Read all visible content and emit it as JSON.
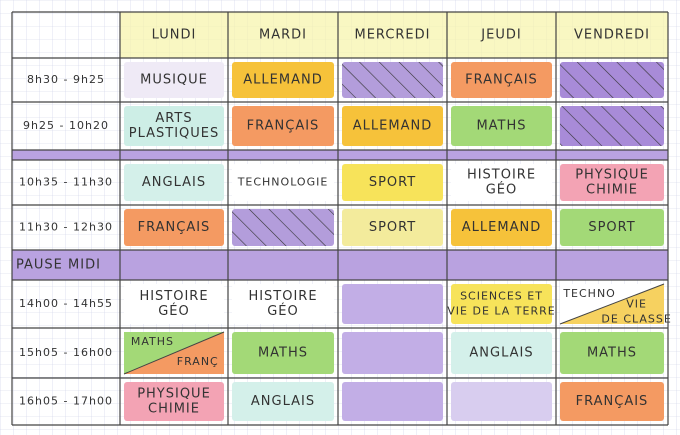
{
  "header": {
    "days": [
      "LUNDI",
      "MARDI",
      "MERCREDI",
      "JEUDI",
      "VENDREDI"
    ]
  },
  "pause": "PAUSE MIDI",
  "rows": [
    {
      "time": "8h30 - 9h25",
      "cells": [
        {
          "lines": [
            "MUSIQUE"
          ],
          "color": "#efeaf6"
        },
        {
          "lines": [
            "ALLEMAND"
          ],
          "color": "#f6c23a"
        },
        {
          "hatched": true,
          "color": "#b39ddb"
        },
        {
          "lines": [
            "FRANÇAIS"
          ],
          "color": "#f49a62"
        },
        {
          "hatched": true,
          "color": "#a88bd8"
        }
      ]
    },
    {
      "time": "9h25 - 10h20",
      "cells": [
        {
          "lines": [
            "ARTS",
            "PLASTIQUES"
          ],
          "color": "#cdeee6"
        },
        {
          "lines": [
            "FRANÇAIS"
          ],
          "color": "#f49a62"
        },
        {
          "lines": [
            "ALLEMAND"
          ],
          "color": "#f6c23a"
        },
        {
          "lines": [
            "MATHS"
          ],
          "color": "#a3d977"
        },
        {
          "hatched": true,
          "color": "#a88bd8"
        }
      ]
    },
    {
      "time": "10h35 - 11h30",
      "cells": [
        {
          "lines": [
            "ANGLAIS"
          ],
          "color": "#d4f0ea"
        },
        {
          "lines": [
            "TECHNOLOGIE"
          ],
          "color": "#ffffff"
        },
        {
          "lines": [
            "SPORT"
          ],
          "color": "#f7e35a"
        },
        {
          "lines": [
            "HISTOIRE",
            "GÉO"
          ],
          "color": "#ffffff"
        },
        {
          "lines": [
            "PHYSIQUE",
            "CHIMIE"
          ],
          "color": "#f3a3b4"
        }
      ]
    },
    {
      "time": "11h30 - 12h30",
      "cells": [
        {
          "lines": [
            "FRANÇAIS"
          ],
          "color": "#f49a62"
        },
        {
          "hatched": true,
          "color": "#b39ddb"
        },
        {
          "lines": [
            "SPORT"
          ],
          "color": "#f3eb9c"
        },
        {
          "lines": [
            "ALLEMAND"
          ],
          "color": "#f6c23a"
        },
        {
          "lines": [
            "SPORT"
          ],
          "color": "#a3d977"
        }
      ]
    },
    {
      "time": "14h00 - 14h55",
      "cells": [
        {
          "lines": [
            "HISTOIRE",
            "GÉO"
          ],
          "color": "#ffffff"
        },
        {
          "lines": [
            "HISTOIRE",
            "GÉO"
          ],
          "color": "#ffffff"
        },
        {
          "color": "#c2aee6"
        },
        {
          "lines": [
            "SCIENCES ET",
            "VIE DE LA TERRE"
          ],
          "color": "#f7e35a"
        },
        {
          "split": [
            {
              "lines": [
                "TECHNO"
              ],
              "color": "#ffffff"
            },
            {
              "lines": [
                "VIE",
                "DE CLASSE"
              ],
              "color": "#f6d160"
            }
          ]
        }
      ]
    },
    {
      "time": "15h05 - 16h00",
      "cells": [
        {
          "split": [
            {
              "lines": [
                "MATHS"
              ],
              "color": "#a3d977"
            },
            {
              "lines": [
                "FRANÇ"
              ],
              "color": "#f49a62"
            }
          ]
        },
        {
          "lines": [
            "MATHS"
          ],
          "color": "#a3d977"
        },
        {
          "color": "#c2aee6"
        },
        {
          "lines": [
            "ANGLAIS"
          ],
          "color": "#d4f0ea"
        },
        {
          "lines": [
            "MATHS"
          ],
          "color": "#a3d977"
        }
      ]
    },
    {
      "time": "16h05 - 17h00",
      "cells": [
        {
          "lines": [
            "PHYSIQUE",
            "CHIMIE"
          ],
          "color": "#f3a3b4"
        },
        {
          "lines": [
            "ANGLAIS"
          ],
          "color": "#d4f0ea"
        },
        {
          "color": "#c2aee6"
        },
        {
          "color": "#d8cdef"
        },
        {
          "lines": [
            "FRANÇAIS"
          ],
          "color": "#f49a62"
        }
      ]
    }
  ]
}
